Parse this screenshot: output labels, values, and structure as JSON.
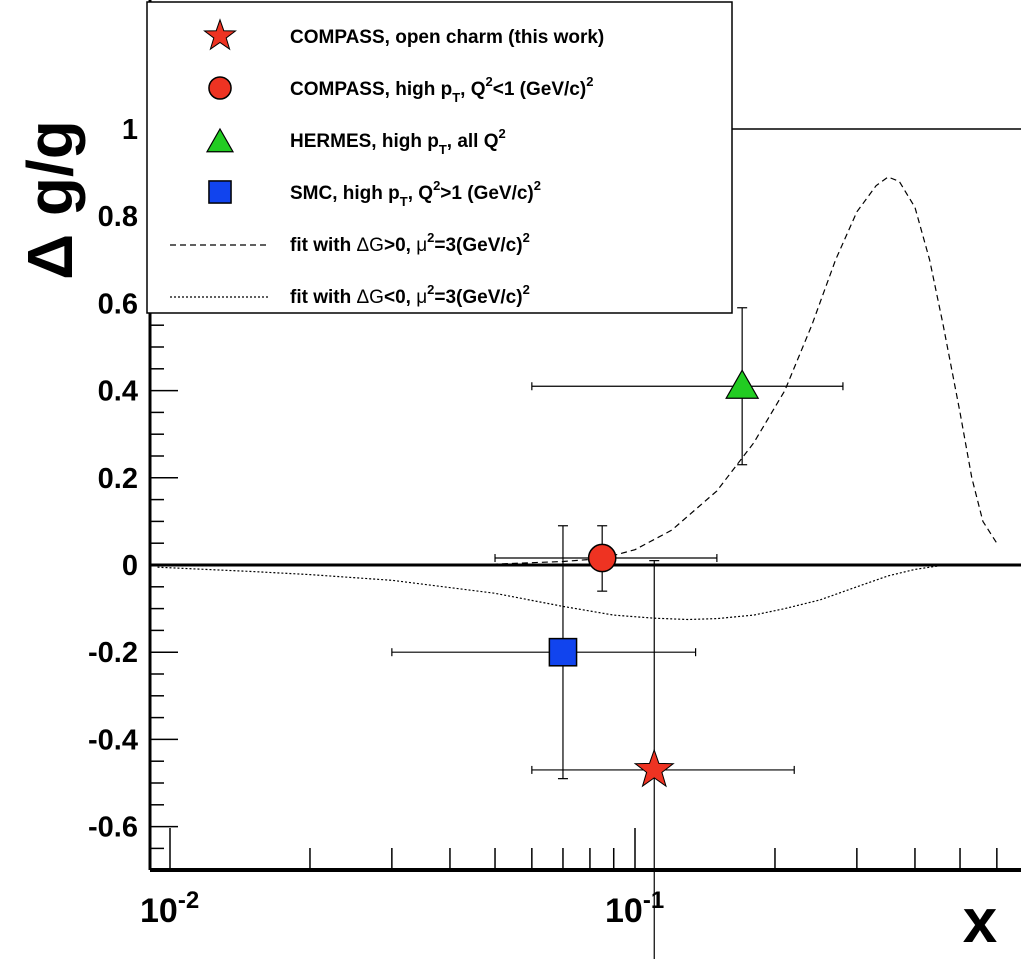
{
  "chart_data": {
    "type": "scatter",
    "xlabel": "x",
    "ylabel": "Δ g/g",
    "xscale": "log",
    "xlim": [
      0.0094,
      0.6
    ],
    "ylim": [
      -0.7,
      1.0
    ],
    "x_ticks": [
      {
        "value": 0.01,
        "base": "10",
        "exp": "-2"
      },
      {
        "value": 0.1,
        "base": "10",
        "exp": "-1"
      }
    ],
    "y_ticks": [
      {
        "value": 1.0,
        "label": "1"
      },
      {
        "value": 0.8,
        "label": "0.8"
      },
      {
        "value": 0.6,
        "label": "0.6"
      },
      {
        "value": 0.4,
        "label": "0.4"
      },
      {
        "value": 0.2,
        "label": "0.2"
      },
      {
        "value": 0.0,
        "label": "0"
      },
      {
        "value": -0.2,
        "label": "-0.2"
      },
      {
        "value": -0.4,
        "label": "-0.4"
      },
      {
        "value": -0.6,
        "label": "-0.6"
      }
    ],
    "series": [
      {
        "name": "COMPASS, open charm (this work)",
        "marker": "star",
        "color": "#ee3322",
        "points": [
          {
            "x": 0.11,
            "y": -0.47,
            "xlo": 0.06,
            "xhi": 0.22,
            "ylo": -0.97,
            "yhi": 0.01
          }
        ]
      },
      {
        "name": "COMPASS, high pT, Q2<1 (GeV/c)2",
        "marker": "circle",
        "color": "#ee3322",
        "points": [
          {
            "x": 0.085,
            "y": 0.016,
            "xlo": 0.05,
            "xhi": 0.15,
            "ylo": -0.06,
            "yhi": 0.09
          }
        ]
      },
      {
        "name": "HERMES, high pT, all Q2",
        "marker": "triangle",
        "color": "#22cc22",
        "points": [
          {
            "x": 0.17,
            "y": 0.41,
            "xlo": 0.06,
            "xhi": 0.28,
            "ylo": 0.23,
            "yhi": 0.59
          }
        ]
      },
      {
        "name": "SMC, high pT, Q2>1 (GeV/c)2",
        "marker": "square",
        "color": "#1144ee",
        "points": [
          {
            "x": 0.07,
            "y": -0.2,
            "xlo": 0.03,
            "xhi": 0.135,
            "ylo": -0.49,
            "yhi": 0.09
          }
        ]
      }
    ],
    "curves": [
      {
        "name": "fit with ΔG>0, μ2=3(GeV/c)2",
        "style": "dashed",
        "points": [
          [
            0.03,
            0.0
          ],
          [
            0.05,
            0.002
          ],
          [
            0.07,
            0.008
          ],
          [
            0.085,
            0.015
          ],
          [
            0.1,
            0.035
          ],
          [
            0.12,
            0.08
          ],
          [
            0.15,
            0.17
          ],
          [
            0.18,
            0.28
          ],
          [
            0.21,
            0.4
          ],
          [
            0.24,
            0.55
          ],
          [
            0.27,
            0.7
          ],
          [
            0.3,
            0.81
          ],
          [
            0.33,
            0.87
          ],
          [
            0.35,
            0.89
          ],
          [
            0.37,
            0.88
          ],
          [
            0.4,
            0.82
          ],
          [
            0.43,
            0.7
          ],
          [
            0.46,
            0.55
          ],
          [
            0.5,
            0.35
          ],
          [
            0.53,
            0.2
          ],
          [
            0.56,
            0.1
          ],
          [
            0.6,
            0.05
          ]
        ]
      },
      {
        "name": "fit with ΔG<0, μ2=3(GeV/c)2",
        "style": "dotted",
        "points": [
          [
            0.0094,
            -0.005
          ],
          [
            0.015,
            -0.015
          ],
          [
            0.02,
            -0.022
          ],
          [
            0.03,
            -0.035
          ],
          [
            0.05,
            -0.065
          ],
          [
            0.07,
            -0.095
          ],
          [
            0.09,
            -0.115
          ],
          [
            0.11,
            -0.122
          ],
          [
            0.13,
            -0.125
          ],
          [
            0.15,
            -0.123
          ],
          [
            0.18,
            -0.115
          ],
          [
            0.21,
            -0.1
          ],
          [
            0.25,
            -0.08
          ],
          [
            0.3,
            -0.05
          ],
          [
            0.35,
            -0.025
          ],
          [
            0.4,
            -0.01
          ],
          [
            0.45,
            -0.002
          ],
          [
            0.5,
            0.0
          ],
          [
            0.6,
            0.0
          ]
        ]
      }
    ],
    "reference_lines": [
      0.0,
      1.0
    ],
    "grid": false,
    "legend_position": "top-left",
    "legend": [
      {
        "marker": "star",
        "color": "#ee3322",
        "text": "COMPASS, open charm (this work)"
      },
      {
        "marker": "circle",
        "color": "#ee3322",
        "parts": [
          {
            "t": "COMPASS, high p"
          },
          {
            "sub": "T"
          },
          {
            "t": ", Q"
          },
          {
            "sup": "2"
          },
          {
            "t": "<1 (GeV/c)"
          },
          {
            "sup": "2"
          }
        ]
      },
      {
        "marker": "triangle",
        "color": "#22cc22",
        "parts": [
          {
            "t": "HERMES, high p"
          },
          {
            "sub": "T"
          },
          {
            "t": ", all Q"
          },
          {
            "sup": "2"
          }
        ]
      },
      {
        "marker": "square",
        "color": "#1144ee",
        "parts": [
          {
            "t": "SMC, high p"
          },
          {
            "sub": "T"
          },
          {
            "t": ", Q"
          },
          {
            "sup": "2"
          },
          {
            "t": ">1 (GeV/c)"
          },
          {
            "sup": "2"
          }
        ]
      },
      {
        "marker": "dashed",
        "color": "#000000",
        "parts": [
          {
            "t": "fit with "
          },
          {
            "t": "ΔG",
            "greek": true
          },
          {
            "t": ">0, "
          },
          {
            "t": "μ",
            "greek": true
          },
          {
            "sup": "2"
          },
          {
            "t": "=3(GeV/c)"
          },
          {
            "sup": "2"
          }
        ]
      },
      {
        "marker": "dotted",
        "color": "#000000",
        "parts": [
          {
            "t": "fit with "
          },
          {
            "t": "ΔG",
            "greek": true
          },
          {
            "t": "<0, "
          },
          {
            "t": "μ",
            "greek": true
          },
          {
            "sup": "2"
          },
          {
            "t": "=3(GeV/c)"
          },
          {
            "sup": "2"
          }
        ]
      }
    ]
  }
}
